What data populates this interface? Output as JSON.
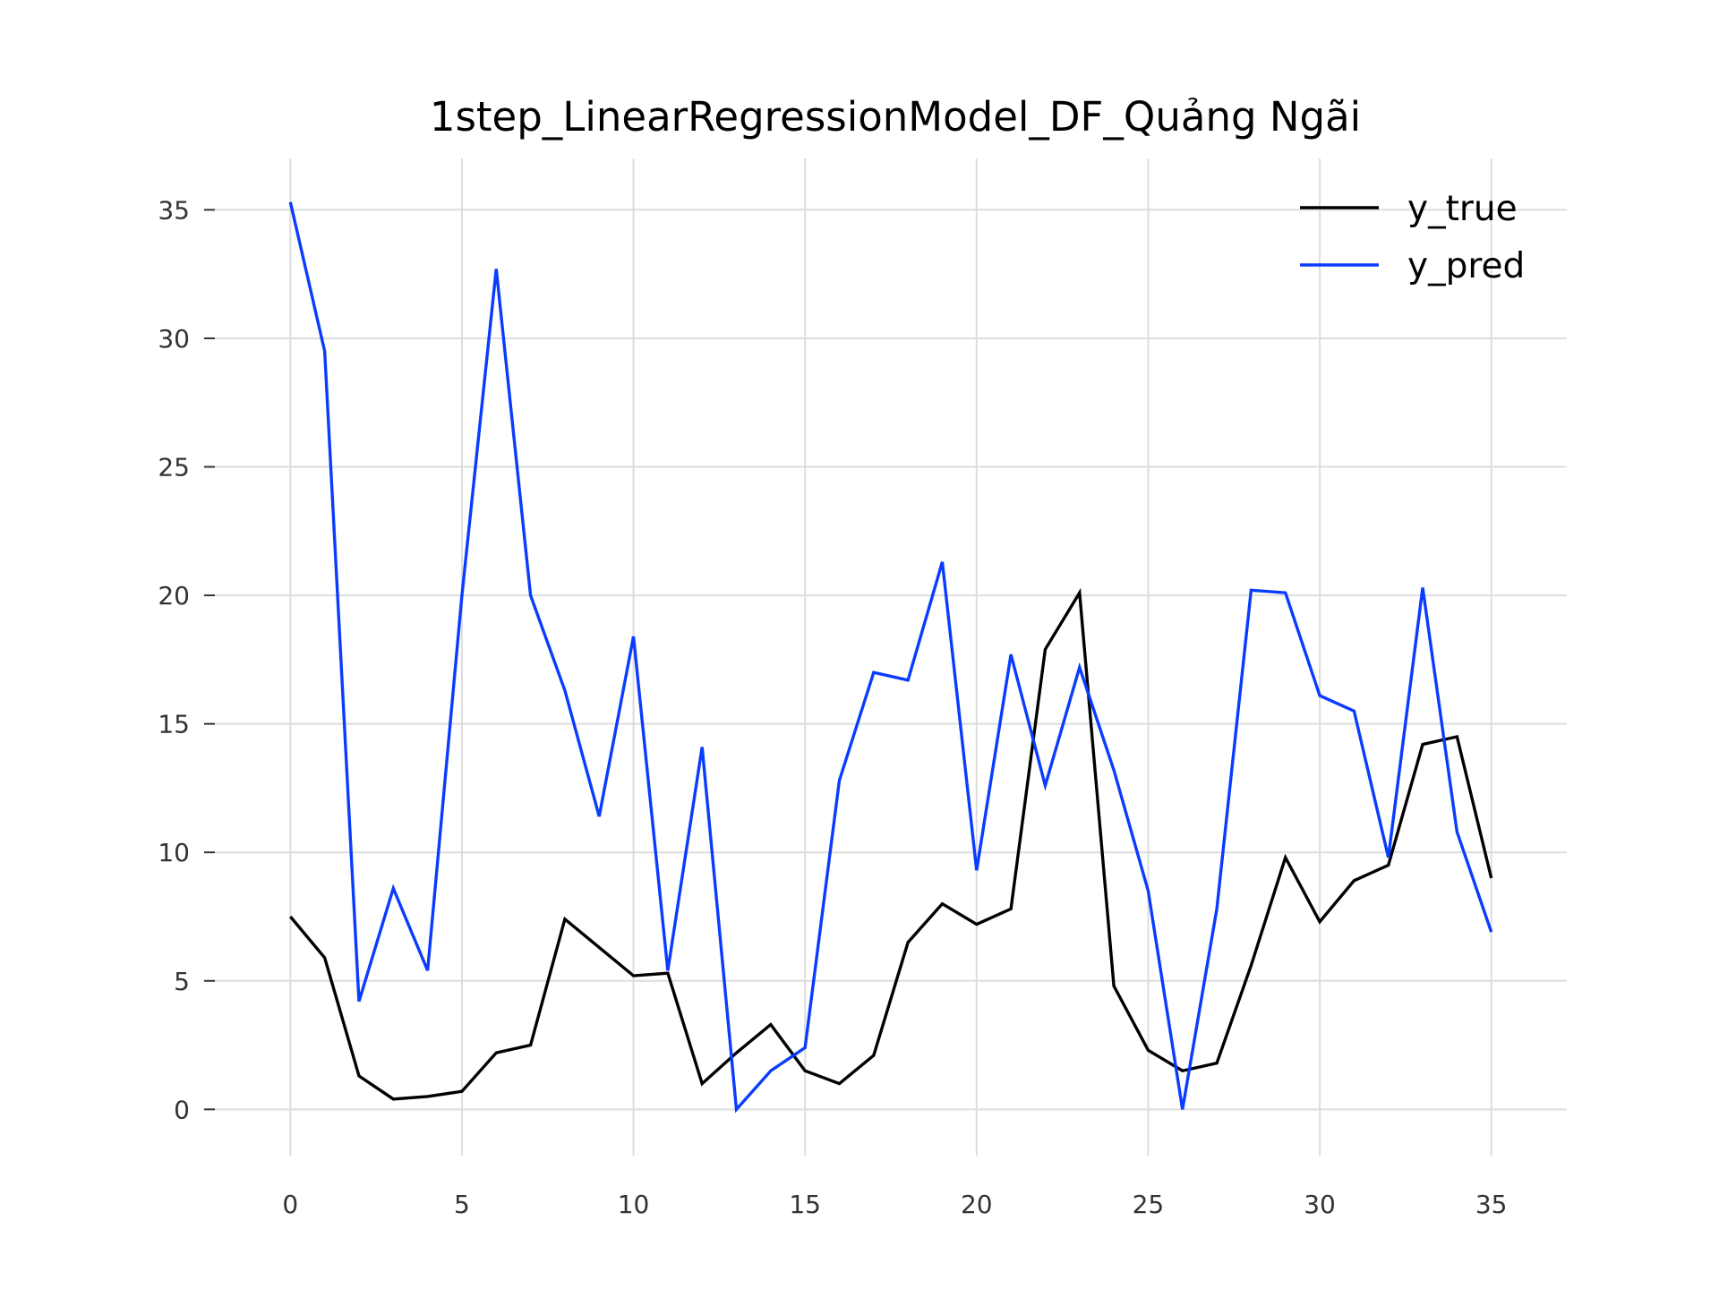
{
  "chart_data": {
    "type": "line",
    "title": "1step_LinearRegressionModel_DF_Quảng Ngãi",
    "xlabel": "",
    "ylabel": "",
    "xlim": [
      -2.2,
      37.2
    ],
    "ylim": [
      -1.8,
      37.0
    ],
    "grid": true,
    "legend_position": "top-right",
    "x_ticks": [
      0,
      5,
      10,
      15,
      20,
      25,
      30,
      35
    ],
    "y_ticks": [
      0,
      5,
      10,
      15,
      20,
      25,
      30,
      35
    ],
    "x": [
      0,
      1,
      2,
      3,
      4,
      5,
      6,
      7,
      8,
      9,
      10,
      11,
      12,
      13,
      14,
      15,
      16,
      17,
      18,
      19,
      20,
      21,
      22,
      23,
      24,
      25,
      26,
      27,
      28,
      29,
      30,
      31,
      32,
      33,
      34,
      35
    ],
    "series": [
      {
        "name": "y_true",
        "color": "#000000",
        "values": [
          7.5,
          5.9,
          1.3,
          0.4,
          0.5,
          0.7,
          2.2,
          2.5,
          7.4,
          6.3,
          5.2,
          5.3,
          1.0,
          2.2,
          3.3,
          1.5,
          1.0,
          2.1,
          6.5,
          8.0,
          7.2,
          7.8,
          17.9,
          20.1,
          4.8,
          2.3,
          1.5,
          1.8,
          5.6,
          9.8,
          7.3,
          8.9,
          9.5,
          14.2,
          14.5,
          9.0
        ]
      },
      {
        "name": "y_pred",
        "color": "#0a3cff",
        "values": [
          35.3,
          29.5,
          4.2,
          8.6,
          5.4,
          20.0,
          32.7,
          20.0,
          16.3,
          11.4,
          18.4,
          5.4,
          14.1,
          0.0,
          1.5,
          2.4,
          12.8,
          17.0,
          16.7,
          21.3,
          9.3,
          17.7,
          12.6,
          17.2,
          13.2,
          8.5,
          0.0,
          7.8,
          20.2,
          20.1,
          16.1,
          15.5,
          9.8,
          20.3,
          10.8,
          6.9
        ]
      }
    ]
  }
}
